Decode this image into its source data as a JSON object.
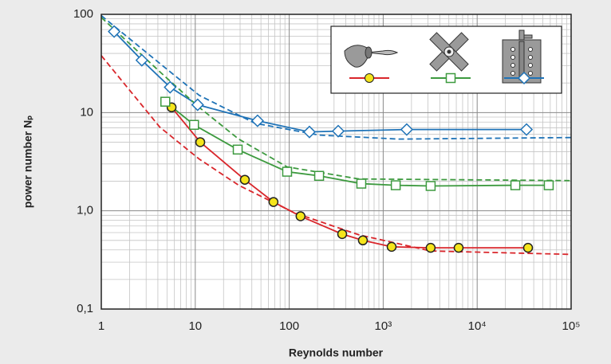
{
  "chart_data": {
    "type": "line",
    "log_x": true,
    "log_y": true,
    "grid": true,
    "minor_grid": true,
    "xlabel": "Reynolds number",
    "ylabel": "power number Nₚ",
    "xlim": [
      1,
      100000
    ],
    "xticks": [
      1,
      10,
      100,
      {
        "value": 1000,
        "label": "10³"
      },
      {
        "value": 10000,
        "label": "10⁴"
      },
      {
        "value": 100000,
        "label": "10⁵"
      }
    ],
    "ylim": [
      0.1,
      100
    ],
    "yticks": [
      {
        "value": 0.1,
        "label": "0,1"
      },
      {
        "value": 1,
        "label": "1,0"
      },
      10,
      100
    ],
    "series": [
      {
        "color": "#d9262b",
        "marker": "circle",
        "marker_fill": "#f5e51c",
        "dashed": false,
        "x": [
          5.6,
          11.3,
          33.7,
          68,
          132,
          366,
          608,
          1230,
          3200,
          6350,
          34800
        ],
        "values": [
          11.3,
          5.0,
          2.07,
          1.23,
          0.88,
          0.58,
          0.5,
          0.43,
          0.42,
          0.42,
          0.42
        ]
      },
      {
        "color": "#3d9a3f",
        "marker": "square",
        "marker_fill": "#ffffff",
        "dashed": false,
        "x": [
          4.8,
          9.7,
          28.3,
          95,
          208,
          585,
          1360,
          3200,
          25500,
          57800
        ],
        "values": [
          12.9,
          7.5,
          4.2,
          2.5,
          2.27,
          1.89,
          1.82,
          1.79,
          1.82,
          1.82
        ]
      },
      {
        "color": "#1f73b7",
        "marker": "diamond",
        "marker_fill": "#ffffff",
        "dashed": false,
        "x": [
          1.37,
          2.7,
          5.4,
          10.6,
          46,
          164,
          332,
          1780,
          33500
        ],
        "values": [
          66.8,
          34.1,
          18.1,
          12.0,
          8.25,
          6.35,
          6.47,
          6.72,
          6.72
        ]
      },
      {
        "color": "#d9262b",
        "dashed": true,
        "x": [
          1,
          4.2,
          11,
          29,
          115,
          550,
          3200,
          100000
        ],
        "values": [
          38,
          7.1,
          3.37,
          1.82,
          0.95,
          0.57,
          0.39,
          0.36
        ]
      },
      {
        "color": "#3d9a3f",
        "dashed": true,
        "x": [
          1,
          4.2,
          11,
          29,
          95,
          550,
          100000
        ],
        "values": [
          93,
          26,
          11.3,
          5.37,
          2.8,
          2.11,
          2.03
        ]
      },
      {
        "color": "#1f73b7",
        "dashed": true,
        "x": [
          1,
          4.2,
          11,
          43,
          208,
          1460,
          100000
        ],
        "values": [
          97,
          31.6,
          15,
          7.8,
          5.9,
          5.37,
          5.57
        ]
      }
    ]
  }
}
